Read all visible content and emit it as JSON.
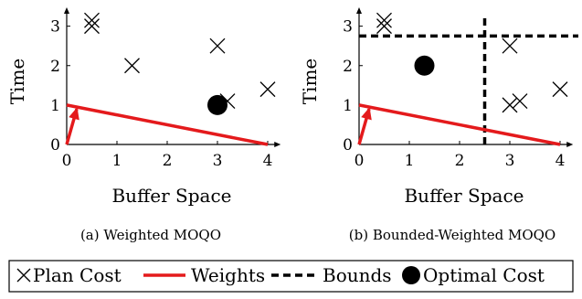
{
  "charts": [
    {
      "caption": "(a) Weighted MOQO",
      "xlabel": "Buffer Space",
      "ylabel": "Time"
    },
    {
      "caption": "(b) Bounded-Weighted MOQO",
      "xlabel": "Buffer Space",
      "ylabel": "Time"
    }
  ],
  "legend": {
    "plan_cost": "Plan Cost",
    "weights": "Weights",
    "bounds": "Bounds",
    "optimal_cost": "Optimal Cost"
  },
  "colors": {
    "weights": "#e41a1c",
    "marks": "#000000"
  },
  "chart_data": [
    {
      "type": "scatter",
      "title": "(a) Weighted MOQO",
      "xlabel": "Buffer Space",
      "ylabel": "Time",
      "xlim": [
        0,
        4
      ],
      "ylim": [
        0,
        3
      ],
      "x_ticks": [
        "0",
        "1",
        "2",
        "3",
        "4"
      ],
      "y_ticks": [
        "0",
        "1",
        "2",
        "3"
      ],
      "series": [
        {
          "name": "Plan Cost",
          "marker": "x",
          "points": [
            [
              0.5,
              3.15
            ],
            [
              0.5,
              3.0
            ],
            [
              1.3,
              2.0
            ],
            [
              3.0,
              2.5
            ],
            [
              3.2,
              1.1
            ],
            [
              4.0,
              1.4
            ]
          ]
        },
        {
          "name": "Weights",
          "type": "line",
          "points": [
            [
              0,
              1
            ],
            [
              4,
              0
            ]
          ],
          "arrow": [
            [
              0,
              0
            ],
            [
              0.2,
              0.9
            ]
          ]
        },
        {
          "name": "Optimal Cost",
          "marker": "circle",
          "points": [
            [
              3.0,
              1.0
            ]
          ]
        }
      ]
    },
    {
      "type": "scatter",
      "title": "(b) Bounded-Weighted MOQO",
      "xlabel": "Buffer Space",
      "ylabel": "Time",
      "xlim": [
        0,
        4
      ],
      "ylim": [
        0,
        3
      ],
      "x_ticks": [
        "0",
        "1",
        "2",
        "3",
        "4"
      ],
      "y_ticks": [
        "0",
        "1",
        "2",
        "3"
      ],
      "series": [
        {
          "name": "Plan Cost",
          "marker": "x",
          "points": [
            [
              0.5,
              3.15
            ],
            [
              0.5,
              3.0
            ],
            [
              3.0,
              2.5
            ],
            [
              3.0,
              1.0
            ],
            [
              3.2,
              1.1
            ],
            [
              4.0,
              1.4
            ]
          ]
        },
        {
          "name": "Weights",
          "type": "line",
          "points": [
            [
              0,
              1
            ],
            [
              4,
              0
            ]
          ],
          "arrow": [
            [
              0,
              0
            ],
            [
              0.2,
              0.9
            ]
          ]
        },
        {
          "name": "Bounds",
          "type": "dashed",
          "x_bound": 2.5,
          "y_bound": 2.75
        },
        {
          "name": "Optimal Cost",
          "marker": "circle",
          "points": [
            [
              1.3,
              2.0
            ]
          ]
        }
      ]
    }
  ]
}
